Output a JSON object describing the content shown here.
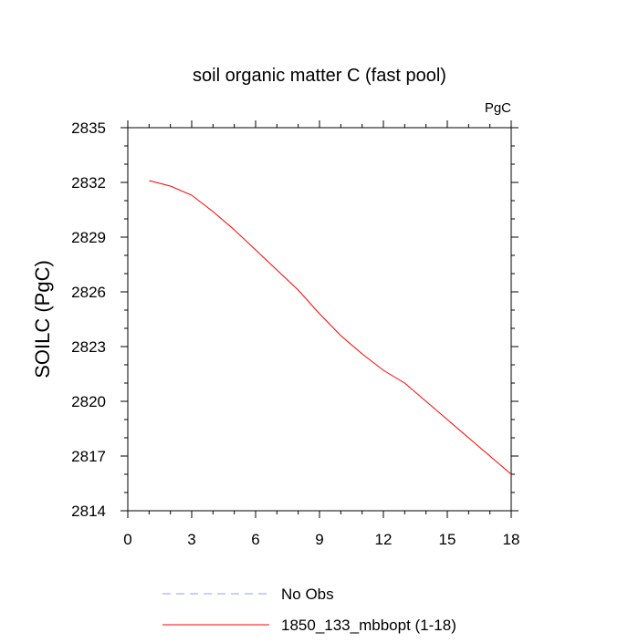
{
  "chart_data": {
    "type": "line",
    "title": "soil organic matter C (fast pool)",
    "units_label": "PgC",
    "xlabel": "",
    "ylabel": "SOILC  (PgC)",
    "xlim": [
      0,
      18
    ],
    "ylim": [
      2814,
      2835
    ],
    "x_ticks": [
      0,
      3,
      6,
      9,
      12,
      15,
      18
    ],
    "y_ticks": [
      2814,
      2817,
      2820,
      2823,
      2826,
      2829,
      2832,
      2835
    ],
    "x_tick_labels": [
      "0",
      "3",
      "6",
      "9",
      "12",
      "15",
      "18"
    ],
    "y_tick_labels": [
      "2814",
      "2817",
      "2820",
      "2823",
      "2826",
      "2829",
      "2832",
      "2835"
    ],
    "grid": false,
    "legend_position": "bottom",
    "series": [
      {
        "name": "1850_133_mbbopt (1-18)",
        "color": "#ff0000",
        "style": "solid",
        "x": [
          1,
          2,
          3,
          4,
          5,
          6,
          7,
          8,
          9,
          10,
          11,
          12,
          13,
          14,
          15,
          16,
          17,
          18
        ],
        "values": [
          2832.1,
          2831.8,
          2831.3,
          2830.4,
          2829.4,
          2828.3,
          2827.2,
          2826.1,
          2824.8,
          2823.6,
          2822.6,
          2821.7,
          2821.0,
          2820.0,
          2819.0,
          2818.0,
          2817.0,
          2816.0
        ]
      }
    ],
    "legend": [
      {
        "label": "No Obs",
        "color": "#9999ff",
        "style": "dashed"
      },
      {
        "label": "1850_133_mbbopt (1-18)",
        "color": "#ff0000",
        "style": "solid"
      }
    ]
  }
}
